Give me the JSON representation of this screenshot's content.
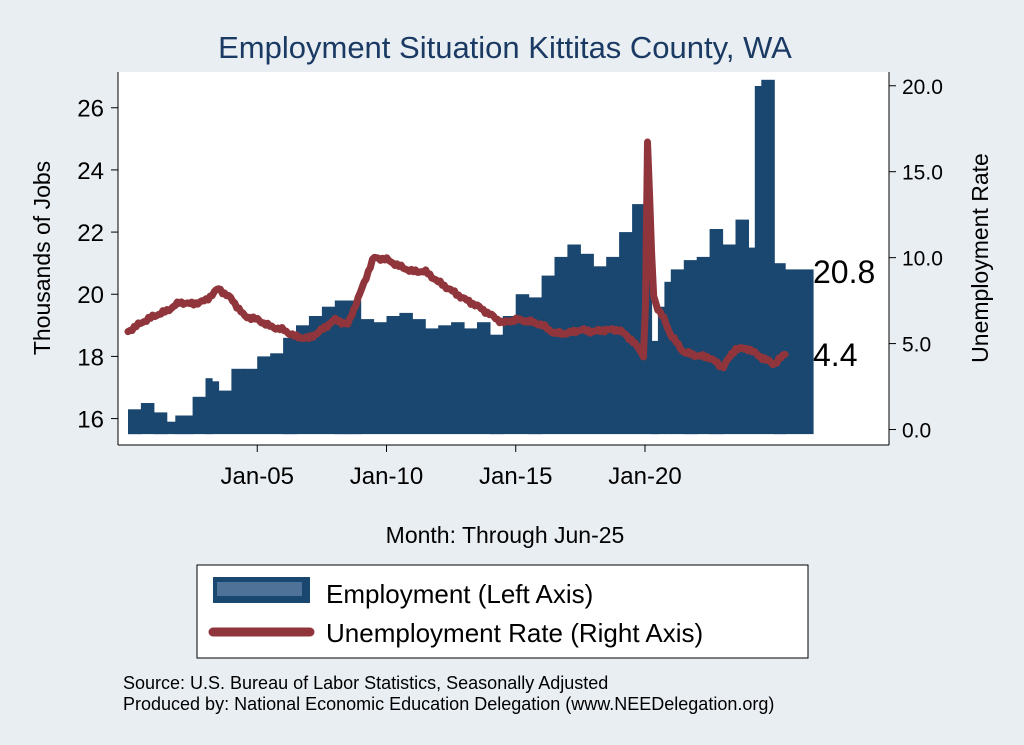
{
  "chart_data": {
    "type": "bar+line",
    "title": "Employment Situation Kittitas  County, WA",
    "xlabel": "Month: Through Jun-25",
    "x_ticks": [
      "Jan-05",
      "Jan-10",
      "Jan-15",
      "Jan-20"
    ],
    "x_tick_years": [
      2005,
      2010,
      2015,
      2020
    ],
    "x_range": [
      2000.0,
      2026.5
    ],
    "left_axis": {
      "label": "Thousands of Jobs",
      "ticks": [
        "16",
        "18",
        "20",
        "22",
        "24",
        "26"
      ],
      "tick_values": [
        16,
        18,
        20,
        22,
        24,
        26
      ],
      "range": [
        15.15,
        27.15
      ],
      "bar_base": 15.5
    },
    "right_axis": {
      "label": "Unemployment Rate",
      "ticks": [
        "0.0",
        "5.0",
        "10.0",
        "15.0",
        "20.0"
      ],
      "tick_values": [
        0,
        5,
        10,
        15,
        20
      ],
      "range": [
        -0.9,
        20.8
      ]
    },
    "last_values": {
      "employment": "20.8",
      "unemployment_rate": "4.4"
    },
    "series": [
      {
        "name": "Employment (Left Axis)",
        "kind": "bar",
        "color": "#1a476f",
        "x": [
          2000.0,
          2000.5,
          2001.0,
          2001.5,
          2001.83,
          2002.5,
          2003.0,
          2003.25,
          2003.5,
          2004.0,
          2004.5,
          2005.0,
          2005.5,
          2006.0,
          2006.5,
          2007.0,
          2007.5,
          2008.0,
          2008.5,
          2009.0,
          2009.5,
          2010.0,
          2010.5,
          2011.0,
          2011.5,
          2012.0,
          2012.5,
          2013.0,
          2013.5,
          2014.0,
          2014.5,
          2015.0,
          2015.5,
          2016.0,
          2016.5,
          2017.0,
          2017.5,
          2018.0,
          2018.5,
          2019.0,
          2019.5,
          2020.0,
          2020.25,
          2020.5,
          2020.75,
          2021.0,
          2021.5,
          2022.0,
          2022.5,
          2023.0,
          2023.5,
          2024.0,
          2024.25,
          2024.5,
          2024.83,
          2025.0,
          2025.42
        ],
        "values": [
          16.3,
          16.5,
          16.2,
          15.9,
          16.1,
          16.7,
          17.3,
          17.2,
          16.9,
          17.6,
          17.6,
          18.0,
          18.1,
          18.6,
          19.0,
          19.3,
          19.6,
          19.8,
          19.8,
          19.2,
          19.1,
          19.3,
          19.4,
          19.2,
          18.9,
          19.0,
          19.1,
          18.9,
          19.1,
          18.7,
          19.3,
          20.0,
          19.9,
          20.6,
          21.2,
          21.6,
          21.3,
          20.9,
          21.2,
          22.0,
          22.9,
          23.2,
          18.5,
          19.6,
          20.4,
          20.8,
          21.1,
          21.2,
          22.1,
          21.6,
          22.4,
          21.5,
          26.7,
          26.9,
          26.9,
          21.0,
          20.8
        ]
      },
      {
        "name": "Unemployment Rate (Right Axis)",
        "kind": "line",
        "color": "#90353b",
        "x": [
          2000.0,
          2000.5,
          2001.0,
          2001.5,
          2002.0,
          2002.5,
          2003.0,
          2003.5,
          2004.0,
          2004.5,
          2005.0,
          2005.5,
          2006.0,
          2006.5,
          2007.0,
          2007.5,
          2008.0,
          2008.5,
          2009.0,
          2009.5,
          2010.0,
          2010.5,
          2011.0,
          2011.5,
          2012.0,
          2012.5,
          2013.0,
          2013.5,
          2014.0,
          2014.5,
          2015.0,
          2015.5,
          2016.0,
          2016.5,
          2017.0,
          2017.5,
          2018.0,
          2018.5,
          2019.0,
          2019.5,
          2020.0,
          2020.08,
          2020.25,
          2020.33,
          2020.5,
          2020.75,
          2021.0,
          2021.5,
          2022.0,
          2022.5,
          2023.0,
          2023.5,
          2024.0,
          2024.5,
          2025.0,
          2025.42
        ],
        "values": [
          5.7,
          6.2,
          6.6,
          6.9,
          7.4,
          7.3,
          7.5,
          8.2,
          7.6,
          6.6,
          6.4,
          6.0,
          5.8,
          5.4,
          5.3,
          5.8,
          6.4,
          6.1,
          8.0,
          10.0,
          9.9,
          9.5,
          9.2,
          9.2,
          8.6,
          8.1,
          7.6,
          7.2,
          6.7,
          6.2,
          6.4,
          6.3,
          6.1,
          5.6,
          5.6,
          5.8,
          5.7,
          5.8,
          5.8,
          5.2,
          4.2,
          17.5,
          10.5,
          7.8,
          7.0,
          6.4,
          5.5,
          4.5,
          4.3,
          4.2,
          3.6,
          4.7,
          4.7,
          4.2,
          3.8,
          4.4
        ]
      }
    ],
    "legend": [
      "Employment (Left Axis)",
      "Unemployment Rate (Right Axis)"
    ],
    "legend_position": "bottom"
  },
  "footer": {
    "source": "Source: U.S. Bureau of Labor Statistics, Seasonally Adjusted",
    "producer": "Produced by: National Economic Education Delegation (www.NEEDelegation.org)"
  },
  "colors": {
    "background": "#e9eef3",
    "plot_area": "#ffffff",
    "employment": "#1a476f",
    "unemployment": "#90353b",
    "title": "#1a3a63"
  }
}
